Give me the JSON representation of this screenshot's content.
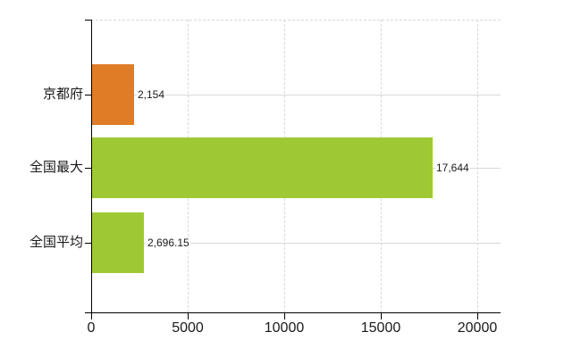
{
  "chart_data": {
    "type": "bar",
    "orientation": "horizontal",
    "title": "",
    "xlabel": "",
    "ylabel": "",
    "categories": [
      "京都府",
      "全国最大",
      "全国平均"
    ],
    "values": [
      2154,
      17644,
      2696.15
    ],
    "value_labels": [
      "2,154",
      "17,644",
      "2,696.15"
    ],
    "bar_colors": [
      "#e07c26",
      "#9fc934",
      "#9fc934"
    ],
    "x_ticks": [
      0,
      5000,
      10000,
      15000,
      20000
    ],
    "x_tick_labels": [
      "0",
      "5000",
      "10000",
      "15000",
      "20000"
    ],
    "xlim": [
      0,
      21200
    ],
    "grid": true,
    "legend": false,
    "colors": {
      "bar_orange": "#e07c26",
      "bar_green": "#9fc934",
      "gridline": "#d9d9d9",
      "axis": "#000000",
      "text": "#1a1a1a",
      "background": "#ffffff"
    }
  }
}
